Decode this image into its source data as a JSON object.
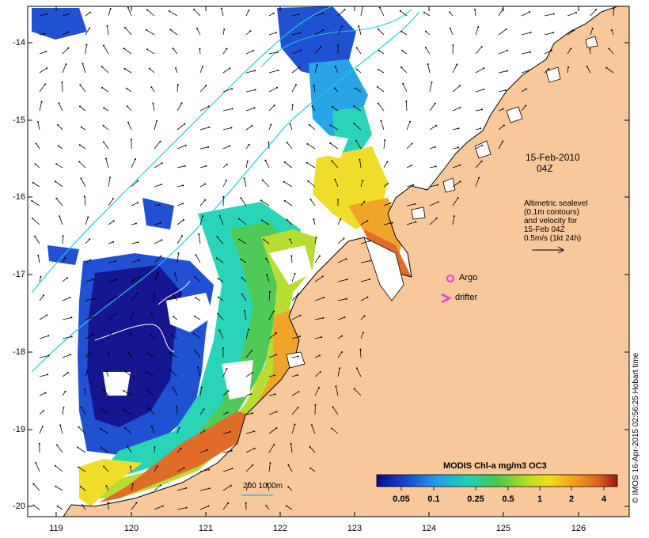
{
  "map": {
    "y_axis_labels": [
      "-14",
      "-15",
      "-16",
      "-17",
      "-18",
      "-19",
      "-20"
    ],
    "x_axis_labels": [
      "119",
      "120",
      "121",
      "122",
      "123",
      "124",
      "125",
      "126"
    ],
    "date_label_line1": "15-Feb-2010",
    "date_label_line2": "04Z",
    "legend_text": [
      "Altimetric sealevel",
      "(0.1m contours)",
      "and velocity for",
      "15-Feb 04Z",
      "0.5m/s (1kt 24h)"
    ],
    "argo_label": "Argo",
    "drifter_label": "drifter",
    "depth_label": "200 1000m",
    "colorbar": {
      "title": "MODIS Chl-a mg/m3 OC3",
      "ticks": [
        "0.05",
        "0.1",
        "0.25",
        "0.5",
        "1",
        "2",
        "4"
      ]
    },
    "credit": "© IMOS 16-Apr-2015 02:56:25 Hobart time",
    "colors": {
      "land": "#f8c89a",
      "coast": "#000000",
      "depth_contour": "#22c8e0",
      "argo_marker": "#e040e0",
      "drifter_marker": "#e040e0",
      "chl_scale": [
        "#0a0a8c",
        "#1448d0",
        "#1ea0e6",
        "#1ed2b4",
        "#46c850",
        "#b4dc28",
        "#f0dc1e",
        "#f0a01e",
        "#e0641e",
        "#a01414"
      ]
    }
  }
}
